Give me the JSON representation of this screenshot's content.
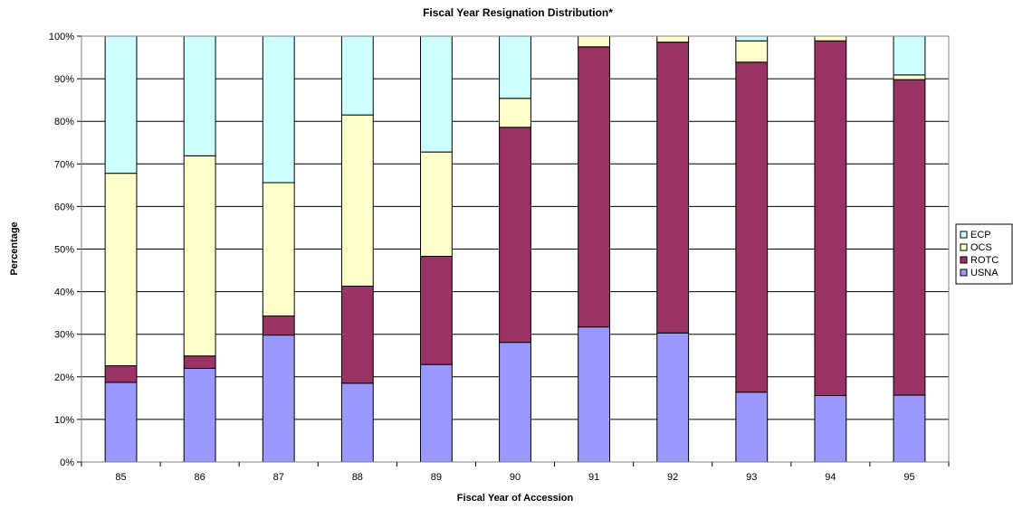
{
  "chart_data": {
    "type": "bar",
    "stacked": true,
    "normalized": true,
    "title": "Fiscal Year Resignation Distribution*",
    "xlabel": "Fiscal Year of Accession",
    "ylabel": "Percentage",
    "ylim": [
      0,
      100
    ],
    "yticks": [
      "0%",
      "10%",
      "20%",
      "30%",
      "40%",
      "50%",
      "60%",
      "70%",
      "80%",
      "90%",
      "100%"
    ],
    "grid": true,
    "legend_position": "right",
    "categories": [
      "85",
      "86",
      "87",
      "88",
      "89",
      "90",
      "91",
      "92",
      "93",
      "94",
      "95"
    ],
    "series": [
      {
        "name": "USNA",
        "color": "#9999ff",
        "values": [
          18.7,
          22.0,
          29.8,
          18.5,
          22.9,
          28.1,
          31.7,
          30.3,
          16.4,
          15.6,
          15.7
        ]
      },
      {
        "name": "ROTC",
        "color": "#993366",
        "values": [
          3.9,
          2.9,
          4.5,
          22.8,
          25.4,
          50.5,
          65.8,
          68.3,
          77.5,
          83.3,
          74.1
        ]
      },
      {
        "name": "OCS",
        "color": "#ffffcc",
        "values": [
          45.2,
          47.0,
          31.3,
          40.2,
          24.5,
          6.8,
          2.5,
          1.4,
          5.0,
          1.1,
          1.1
        ]
      },
      {
        "name": "ECP",
        "color": "#ccffff",
        "values": [
          32.2,
          28.1,
          34.4,
          18.5,
          27.2,
          14.6,
          0.0,
          0.0,
          1.1,
          0.0,
          9.1
        ]
      }
    ],
    "legend_order": [
      "ECP",
      "OCS",
      "ROTC",
      "USNA"
    ]
  }
}
